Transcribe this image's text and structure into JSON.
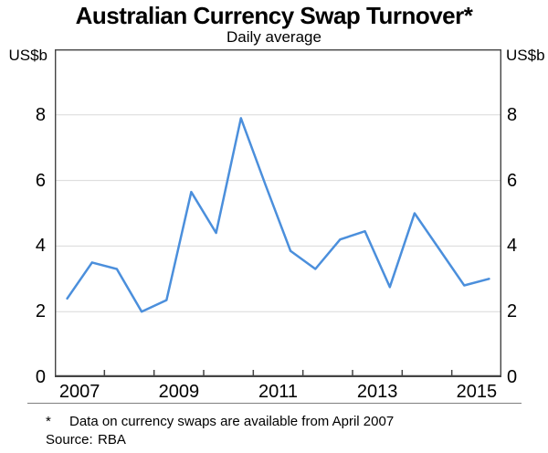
{
  "header": {
    "title": "Australian Currency Swap Turnover*",
    "subtitle": "Daily average"
  },
  "chart_data": {
    "type": "line",
    "title": "Australian Currency Swap Turnover*",
    "subtitle": "Daily average",
    "ylabel": "US$b",
    "y_unit_left": "US$b",
    "y_unit_right": "US$b",
    "ylim": [
      0,
      10
    ],
    "yticks": [
      0,
      2,
      4,
      6,
      8
    ],
    "xlim": [
      2007,
      2016
    ],
    "xtick_marks": [
      2008,
      2009,
      2010,
      2011,
      2012,
      2013,
      2014,
      2015
    ],
    "xtick_labels": [
      {
        "label": "2007",
        "pos": 2007.5
      },
      {
        "label": "2009",
        "pos": 2009.5
      },
      {
        "label": "2011",
        "pos": 2011.5
      },
      {
        "label": "2013",
        "pos": 2013.5
      },
      {
        "label": "2015",
        "pos": 2015.5
      }
    ],
    "grid": true,
    "legend_position": "none",
    "series": [
      {
        "name": "Australian currency swap turnover, daily average (US$b)",
        "color": "#4b8fdc",
        "points": [
          {
            "period": "Apr 2007",
            "x": 2007.25,
            "y": 2.4
          },
          {
            "period": "Oct 2007",
            "x": 2007.75,
            "y": 3.5
          },
          {
            "period": "Apr 2008",
            "x": 2008.25,
            "y": 3.3
          },
          {
            "period": "Oct 2008",
            "x": 2008.75,
            "y": 2.0
          },
          {
            "period": "Apr 2009",
            "x": 2009.25,
            "y": 2.35
          },
          {
            "period": "Oct 2009",
            "x": 2009.75,
            "y": 5.65
          },
          {
            "period": "Apr 2010",
            "x": 2010.25,
            "y": 4.4
          },
          {
            "period": "Oct 2010",
            "x": 2010.75,
            "y": 7.9
          },
          {
            "period": "Apr 2011",
            "x": 2011.25,
            "y": 5.85
          },
          {
            "period": "Oct 2011",
            "x": 2011.75,
            "y": 3.85
          },
          {
            "period": "Apr 2012",
            "x": 2012.25,
            "y": 3.3
          },
          {
            "period": "Oct 2012",
            "x": 2012.75,
            "y": 4.2
          },
          {
            "period": "Apr 2013",
            "x": 2013.25,
            "y": 4.45
          },
          {
            "period": "Oct 2013",
            "x": 2013.75,
            "y": 2.75
          },
          {
            "period": "Apr 2014",
            "x": 2014.25,
            "y": 5.0
          },
          {
            "period": "Oct 2014",
            "x": 2014.75,
            "y": 3.9
          },
          {
            "period": "Apr 2015",
            "x": 2015.25,
            "y": 2.8
          },
          {
            "period": "Oct 2015",
            "x": 2015.75,
            "y": 3.0
          }
        ]
      }
    ]
  },
  "footnote": {
    "marker": "*",
    "text": "Data on currency swaps are available from April 2007"
  },
  "source": {
    "label": "Source:",
    "value": "RBA"
  },
  "colors": {
    "line": "#4b8fdc",
    "grid": "#d9d9d9",
    "axis": "#444444",
    "text": "#000000",
    "footnote_rule": "#808080"
  }
}
